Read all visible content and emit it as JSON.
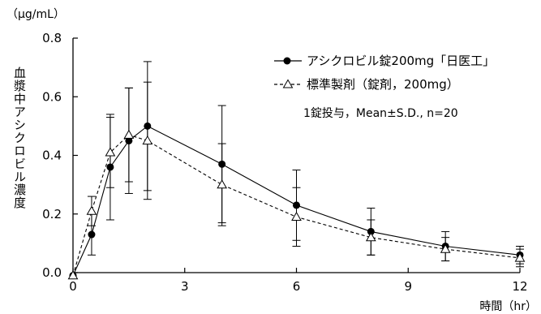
{
  "chart_data": {
    "type": "line",
    "unit_label": "（μg/mL）",
    "ylabel": "血漿中アシクロビル濃度",
    "xlabel": "時間（hr）",
    "xlim": [
      0,
      12
    ],
    "ylim": [
      0,
      0.8
    ],
    "x_ticks": [
      0,
      3,
      6,
      9,
      12
    ],
    "y_ticks": [
      0.0,
      0.2,
      0.4,
      0.6,
      0.8
    ],
    "y_tick_labels": [
      "0.0",
      "0.2",
      "0.4",
      "0.6",
      "0.8"
    ],
    "note": "1錠投与，Mean±S.D., n=20",
    "series": [
      {
        "name": "アシクロビル錠200mg「日医工」",
        "marker": "filled-circle",
        "line_style": "solid",
        "x": [
          0,
          0.5,
          1,
          1.5,
          2,
          4,
          6,
          8,
          10,
          12
        ],
        "y": [
          -0.01,
          0.13,
          0.36,
          0.45,
          0.5,
          0.37,
          0.23,
          0.14,
          0.09,
          0.06
        ],
        "sd": [
          0,
          0.07,
          0.18,
          0.18,
          0.22,
          0.2,
          0.12,
          0.08,
          0.05,
          0.03
        ]
      },
      {
        "name": "標準製剤（錠剤，200mg）",
        "marker": "open-triangle",
        "line_style": "dashed",
        "x": [
          0,
          0.5,
          1,
          1.5,
          2,
          4,
          6,
          8,
          10,
          12
        ],
        "y": [
          -0.01,
          0.21,
          0.41,
          0.47,
          0.45,
          0.3,
          0.19,
          0.12,
          0.08,
          0.05
        ],
        "sd": [
          0,
          0.05,
          0.12,
          0.16,
          0.2,
          0.14,
          0.1,
          0.06,
          0.04,
          0.03
        ]
      }
    ]
  }
}
